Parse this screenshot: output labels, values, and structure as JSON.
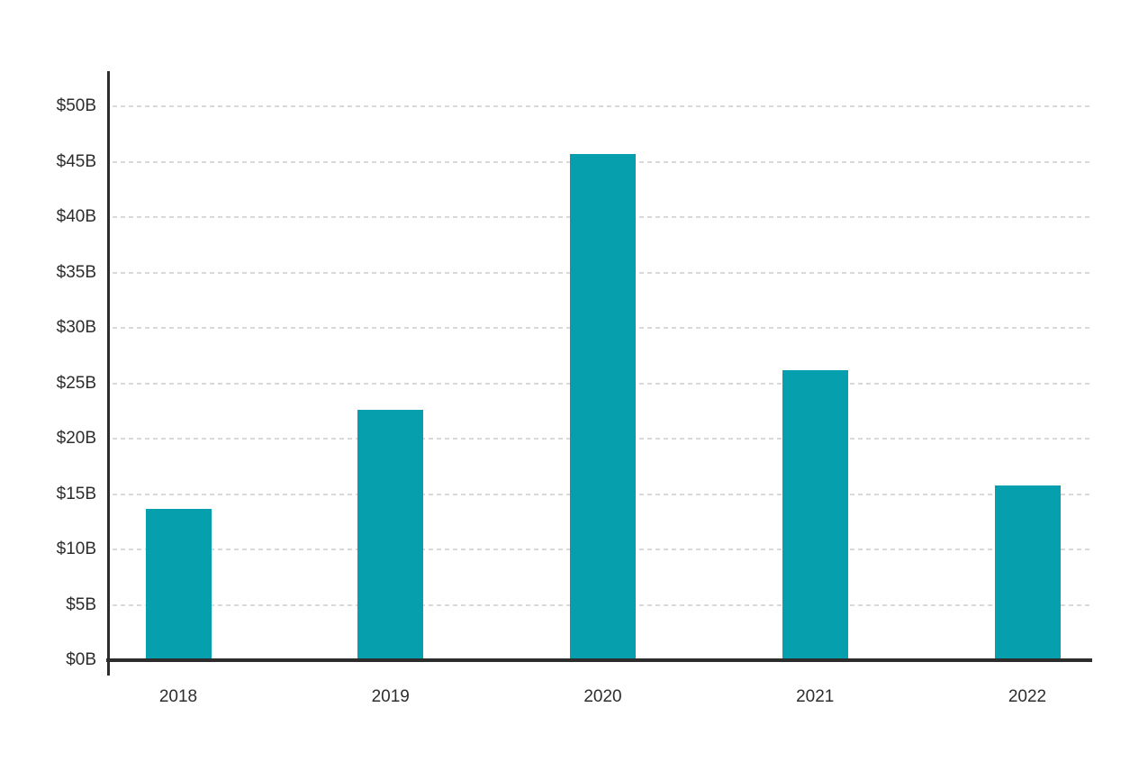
{
  "chart_data": {
    "type": "bar",
    "title": "",
    "xlabel": "",
    "ylabel": "",
    "categories": [
      "2018",
      "2019",
      "2020",
      "2021",
      "2022"
    ],
    "values": [
      13.5,
      22.4,
      45.5,
      26,
      15.6
    ],
    "values_unit": "$B",
    "ylim": [
      0,
      50
    ],
    "ytick_step": 5,
    "ytick_labels": [
      "$0B",
      "$5B",
      "$10B",
      "$15B",
      "$20B",
      "$25B",
      "$30B",
      "$35B",
      "$40B",
      "$45B",
      "$50B"
    ],
    "grid": "horizontal-dashed",
    "legend": "none",
    "colors": {
      "bar": "#069fae",
      "axis": "#2d2d2d",
      "gridline": "#d9d9d9",
      "tick_text": "#2d2d2d",
      "background": "#ffffff"
    }
  }
}
